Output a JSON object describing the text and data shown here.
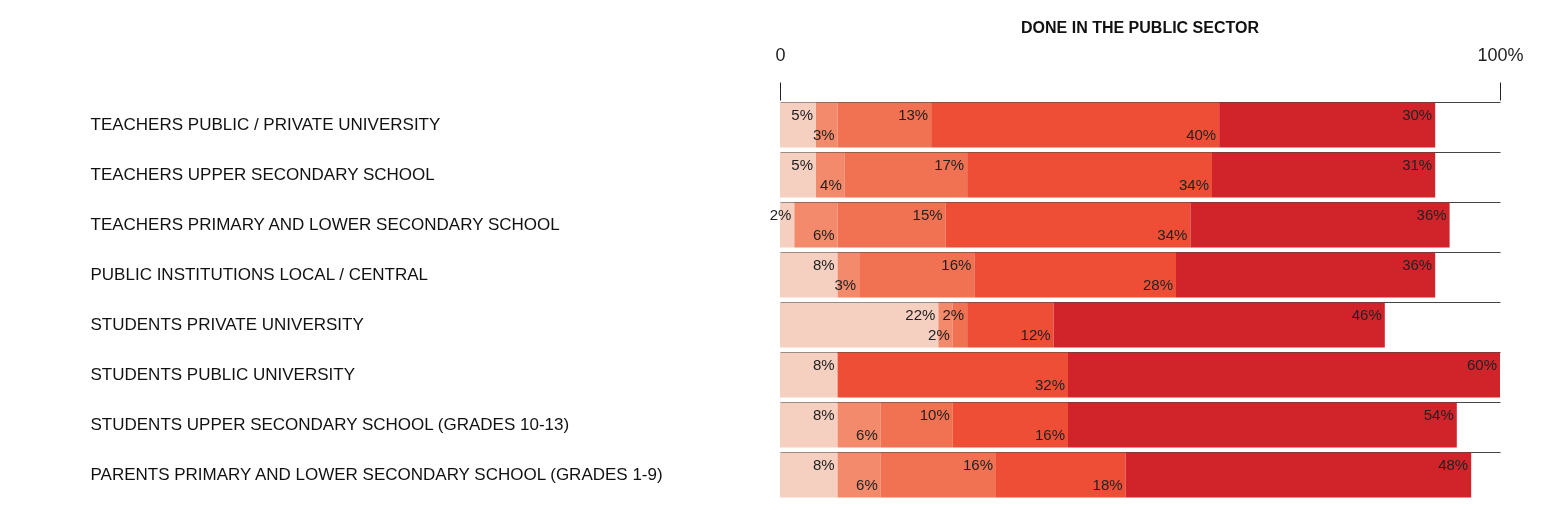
{
  "chart_data": {
    "type": "bar",
    "orientation": "horizontal",
    "stacked": true,
    "annotations": [
      "DONE IN THE PUBLIC SECTOR"
    ],
    "categories": [
      "TEACHERS PUBLIC / PRIVATE UNIVERSITY",
      "TEACHERS UPPER SECONDARY SCHOOL",
      "TEACHERS PRIMARY AND LOWER SECONDARY SCHOOL",
      "PUBLIC INSTITUTIONS LOCAL / CENTRAL",
      "STUDENTS PRIVATE UNIVERSITY",
      "STUDENTS PUBLIC UNIVERSITY",
      "STUDENTS UPPER SECONDARY SCHOOL (GRADES 10-13)",
      "PARENTS PRIMARY AND LOWER SECONDARY SCHOOL (GRADES 1-9)"
    ],
    "series": [
      {
        "color": "#f5cfc0",
        "values": [
          5,
          5,
          2,
          8,
          22,
          8,
          8,
          8
        ],
        "value_labels": [
          "5%",
          "5%",
          "2%",
          "8%",
          "22%",
          "8%",
          "8%",
          "8%"
        ]
      },
      {
        "color": "#f38a6c",
        "values": [
          3,
          4,
          6,
          3,
          2,
          null,
          6,
          6
        ],
        "value_labels": [
          "3%",
          "4%",
          "6%",
          "3%",
          "2%",
          null,
          "6%",
          "6%"
        ]
      },
      {
        "color": "#f07252",
        "values": [
          13,
          17,
          15,
          16,
          2,
          null,
          10,
          16
        ],
        "value_labels": [
          "13%",
          "17%",
          "15%",
          "16%",
          "2%",
          null,
          "10%",
          "16%"
        ]
      },
      {
        "color": "#ee4e36",
        "values": [
          40,
          34,
          34,
          28,
          12,
          32,
          16,
          18
        ],
        "value_labels": [
          "40%",
          "34%",
          "34%",
          "28%",
          "12%",
          "32%",
          "16%",
          "18%"
        ]
      },
      {
        "color": "#d0232a",
        "values": [
          30,
          31,
          36,
          36,
          46,
          60,
          54,
          48
        ],
        "value_labels": [
          "30%",
          "31%",
          "36%",
          "36%",
          "46%",
          "60%",
          "54%",
          "48%"
        ]
      }
    ],
    "xlim": [
      0,
      100
    ],
    "xticks": [
      {
        "value": 0,
        "label": "0"
      },
      {
        "value": 100,
        "label": "100%"
      }
    ],
    "grid": "y"
  }
}
